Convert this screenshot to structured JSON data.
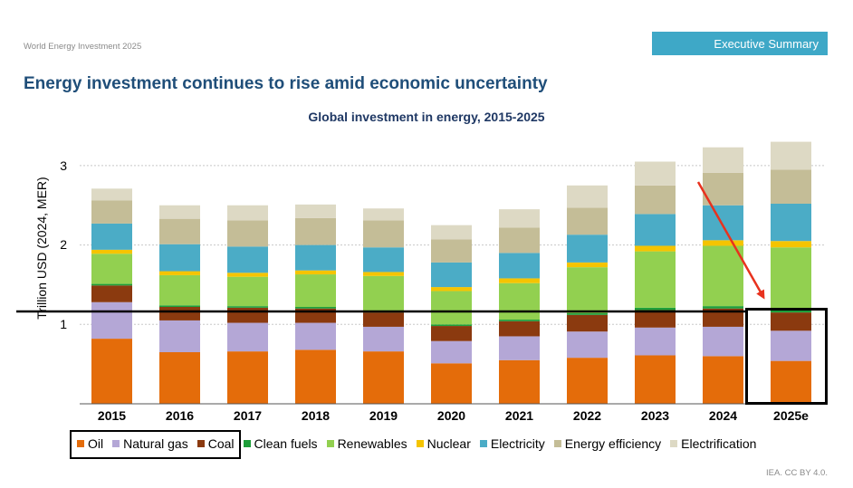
{
  "header": {
    "doc_label": "World Energy Investment 2025",
    "section_banner": "Executive Summary",
    "page_title": "Energy investment continues to rise amid economic uncertainty"
  },
  "chart_data": {
    "type": "bar",
    "stacked": true,
    "title": "Global investment in energy, 2015-2025",
    "xlabel": "",
    "ylabel": "Trillion USD (2024, MER)",
    "ylim": [
      0,
      3.3
    ],
    "yticks": [
      "1",
      "2",
      "3"
    ],
    "grid": true,
    "legend_position": "bottom",
    "categories": [
      "2015",
      "2016",
      "2017",
      "2018",
      "2019",
      "2020",
      "2021",
      "2022",
      "2023",
      "2024",
      "2025e"
    ],
    "series": [
      {
        "name": "Oil",
        "color": "#e46c0a",
        "values": [
          0.82,
          0.65,
          0.66,
          0.68,
          0.66,
          0.51,
          0.55,
          0.58,
          0.61,
          0.6,
          0.54
        ]
      },
      {
        "name": "Natural gas",
        "color": "#b4a7d6",
        "values": [
          0.46,
          0.4,
          0.36,
          0.34,
          0.31,
          0.28,
          0.3,
          0.33,
          0.35,
          0.37,
          0.38
        ]
      },
      {
        "name": "Coal",
        "color": "#8b3a0f",
        "values": [
          0.21,
          0.17,
          0.19,
          0.18,
          0.18,
          0.19,
          0.19,
          0.21,
          0.22,
          0.23,
          0.23
        ]
      },
      {
        "name": "Clean fuels",
        "color": "#1e9e3a",
        "values": [
          0.02,
          0.02,
          0.02,
          0.02,
          0.02,
          0.02,
          0.02,
          0.02,
          0.03,
          0.03,
          0.03
        ]
      },
      {
        "name": "Renewables",
        "color": "#92d050",
        "values": [
          0.38,
          0.38,
          0.37,
          0.41,
          0.44,
          0.42,
          0.46,
          0.58,
          0.71,
          0.76,
          0.79
        ]
      },
      {
        "name": "Nuclear",
        "color": "#f5c400",
        "values": [
          0.05,
          0.05,
          0.05,
          0.05,
          0.05,
          0.05,
          0.06,
          0.06,
          0.07,
          0.07,
          0.08
        ]
      },
      {
        "name": "Electricity",
        "color": "#4bacc6",
        "values": [
          0.33,
          0.34,
          0.33,
          0.32,
          0.31,
          0.31,
          0.32,
          0.35,
          0.4,
          0.44,
          0.47
        ]
      },
      {
        "name": "Energy efficiency",
        "color": "#c4bd97",
        "values": [
          0.29,
          0.32,
          0.33,
          0.34,
          0.34,
          0.29,
          0.32,
          0.34,
          0.36,
          0.41,
          0.43
        ]
      },
      {
        "name": "Electrification",
        "color": "#ddd9c4",
        "values": [
          0.15,
          0.17,
          0.19,
          0.17,
          0.15,
          0.18,
          0.23,
          0.28,
          0.3,
          0.32,
          0.35
        ]
      }
    ]
  },
  "footer": {
    "source": "IEA. CC BY 4.0."
  }
}
